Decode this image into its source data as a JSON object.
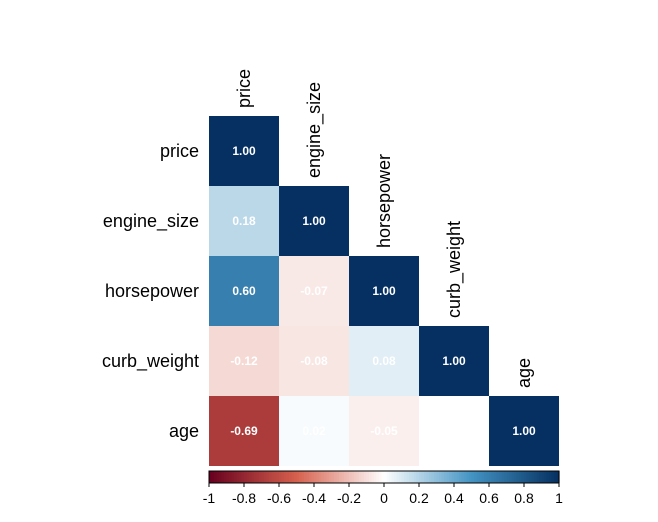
{
  "chart_data": {
    "type": "heatmap",
    "layout": "lower-triangle",
    "variables": [
      "price",
      "engine_size",
      "horsepower",
      "curb_weight",
      "age"
    ],
    "matrix": [
      [
        1.0,
        null,
        null,
        null,
        null
      ],
      [
        0.18,
        1.0,
        null,
        null,
        null
      ],
      [
        0.6,
        -0.07,
        1.0,
        null,
        null
      ],
      [
        -0.12,
        -0.08,
        0.08,
        1.0,
        null
      ],
      [
        -0.69,
        0.02,
        -0.05,
        0.0,
        1.0
      ]
    ],
    "cell_labels": [
      [
        "1.00",
        "",
        "",
        "",
        ""
      ],
      [
        "0.18",
        "1.00",
        "",
        "",
        ""
      ],
      [
        "0.60",
        "-0.07",
        "1.00",
        "",
        ""
      ],
      [
        "-0.12",
        "-0.08",
        "0.08",
        "1.00",
        ""
      ],
      [
        "-0.69",
        "0.02",
        "-0.05",
        "",
        "1.00"
      ]
    ],
    "colorbar": {
      "range": [
        -1,
        1
      ],
      "ticks": [
        "-1",
        "-0.8",
        "-0.6",
        "-0.4",
        "-0.2",
        "0",
        "0.2",
        "0.4",
        "0.6",
        "0.8",
        "1"
      ],
      "colors": {
        "neg_max": "#67001f",
        "neg_mid": "#d6604d",
        "zero": "#ffffff",
        "pos_mid": "#4393c3",
        "pos_max": "#053061"
      }
    }
  }
}
